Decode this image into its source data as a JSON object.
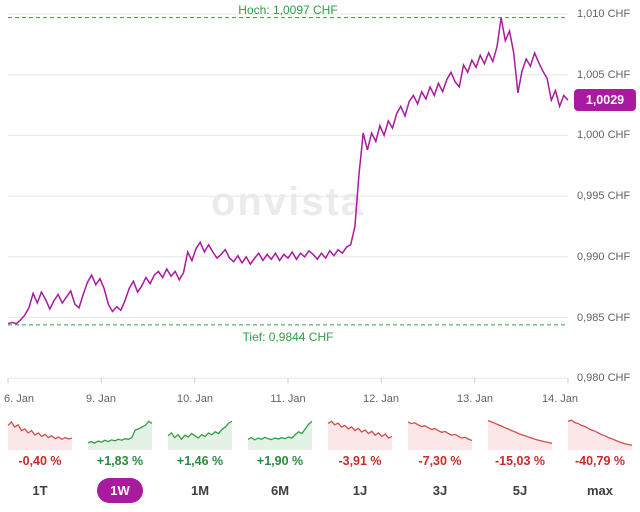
{
  "watermark": "onvista",
  "colors": {
    "line": "#a81a9e",
    "badge_bg": "#a81a9e",
    "high_low": "#2f9e44",
    "grid": "#e7e7e7",
    "axis_text": "#5f6368",
    "positive_line": "#2f9e44",
    "positive_fill": "#e3f2e4",
    "negative_line": "#d24d4d",
    "negative_fill": "#fbe7e7",
    "positive_text": "#2b8a3e",
    "negative_text": "#c92a2a"
  },
  "chart_data": {
    "type": "line",
    "currency": "CHF",
    "high_label": "Hoch: 1,0097 CHF",
    "low_label": "Tief: 0,9844 CHF",
    "high_value": 1.0097,
    "low_value": 0.9844,
    "last_price": 1.0029,
    "last_price_label": "1,0029",
    "ylim": [
      0.98,
      1.01
    ],
    "y_ticks": [
      "1,010 CHF",
      "1,005 CHF",
      "1,000 CHF",
      "0,995 CHF",
      "0,990 CHF",
      "0,985 CHF",
      "0,980 CHF"
    ],
    "y_tick_values": [
      1.01,
      1.005,
      1.0,
      0.995,
      0.99,
      0.985,
      0.98
    ],
    "x_labels": [
      "6. Jan",
      "9. Jan",
      "10. Jan",
      "11. Jan",
      "12. Jan",
      "13. Jan",
      "14. Jan"
    ],
    "series": [
      {
        "name": "price",
        "values": [
          0.9845,
          0.9846,
          0.9845,
          0.9848,
          0.9852,
          0.9858,
          0.987,
          0.9862,
          0.9871,
          0.9865,
          0.9857,
          0.9864,
          0.9869,
          0.9862,
          0.9867,
          0.9872,
          0.9861,
          0.9858,
          0.9869,
          0.9879,
          0.9885,
          0.9877,
          0.9882,
          0.9874,
          0.9861,
          0.9855,
          0.9859,
          0.9856,
          0.9864,
          0.9874,
          0.988,
          0.9871,
          0.9876,
          0.9883,
          0.9878,
          0.9885,
          0.9888,
          0.9883,
          0.989,
          0.9884,
          0.9888,
          0.9881,
          0.9887,
          0.9904,
          0.9897,
          0.9907,
          0.9912,
          0.9904,
          0.991,
          0.9904,
          0.9899,
          0.9902,
          0.9906,
          0.9899,
          0.9896,
          0.9901,
          0.9895,
          0.99,
          0.9894,
          0.9899,
          0.9903,
          0.9897,
          0.9902,
          0.9898,
          0.9903,
          0.9897,
          0.9902,
          0.9899,
          0.9904,
          0.9898,
          0.9903,
          0.99,
          0.9905,
          0.9902,
          0.9898,
          0.9903,
          0.9899,
          0.9905,
          0.9901,
          0.9906,
          0.9903,
          0.9908,
          0.991,
          0.9925,
          0.9968,
          1.0002,
          0.9988,
          1.0002,
          0.9995,
          1.0008,
          1.0,
          1.0012,
          1.0006,
          1.0018,
          1.0024,
          1.0016,
          1.0028,
          1.0033,
          1.0026,
          1.0036,
          1.003,
          1.004,
          1.0033,
          1.0043,
          1.0036,
          1.0046,
          1.0052,
          1.0044,
          1.004,
          1.0058,
          1.0052,
          1.0062,
          1.0056,
          1.0066,
          1.0059,
          1.0068,
          1.0061,
          1.0073,
          1.0097,
          1.0078,
          1.0086,
          1.0068,
          1.0035,
          1.0053,
          1.0063,
          1.0057,
          1.0068,
          1.006,
          1.0053,
          1.0047,
          1.0029,
          1.0037,
          1.0024,
          1.0033,
          1.0029
        ]
      }
    ]
  },
  "sparklines": {
    "items": [
      {
        "period": "1T",
        "label": "-0,40 %",
        "trend": "down",
        "values": [
          0.78,
          0.9,
          0.72,
          0.8,
          0.6,
          0.66,
          0.52,
          0.6,
          0.45,
          0.52,
          0.4,
          0.47,
          0.36,
          0.42,
          0.32,
          0.38,
          0.3,
          0.36,
          0.31,
          0.34
        ]
      },
      {
        "period": "1W",
        "label": "+1,83 %",
        "trend": "up",
        "values": [
          0.18,
          0.22,
          0.17,
          0.24,
          0.2,
          0.27,
          0.22,
          0.28,
          0.25,
          0.3,
          0.27,
          0.32,
          0.3,
          0.36,
          0.62,
          0.66,
          0.72,
          0.78,
          0.92,
          0.85
        ]
      },
      {
        "period": "1M",
        "label": "+1,46 %",
        "trend": "up",
        "values": [
          0.42,
          0.52,
          0.36,
          0.46,
          0.3,
          0.44,
          0.38,
          0.5,
          0.42,
          0.35,
          0.46,
          0.4,
          0.52,
          0.46,
          0.56,
          0.5,
          0.64,
          0.72,
          0.86,
          0.92
        ]
      },
      {
        "period": "6M",
        "label": "+1,90 %",
        "trend": "up",
        "values": [
          0.3,
          0.36,
          0.28,
          0.34,
          0.3,
          0.37,
          0.32,
          0.29,
          0.35,
          0.31,
          0.36,
          0.32,
          0.38,
          0.34,
          0.46,
          0.56,
          0.5,
          0.66,
          0.82,
          0.92
        ]
      },
      {
        "period": "1J",
        "label": "-3,91 %",
        "trend": "down",
        "values": [
          0.85,
          0.92,
          0.8,
          0.86,
          0.72,
          0.78,
          0.66,
          0.73,
          0.6,
          0.68,
          0.55,
          0.62,
          0.5,
          0.58,
          0.44,
          0.52,
          0.4,
          0.48,
          0.34,
          0.4
        ]
      },
      {
        "period": "3J",
        "label": "-7,30 %",
        "trend": "down",
        "values": [
          0.9,
          0.84,
          0.87,
          0.8,
          0.74,
          0.77,
          0.7,
          0.64,
          0.67,
          0.6,
          0.54,
          0.57,
          0.5,
          0.44,
          0.47,
          0.4,
          0.34,
          0.37,
          0.3,
          0.26
        ]
      },
      {
        "period": "5J",
        "label": "-15,03 %",
        "trend": "down",
        "values": [
          0.95,
          0.9,
          0.86,
          0.8,
          0.76,
          0.7,
          0.66,
          0.6,
          0.56,
          0.5,
          0.46,
          0.42,
          0.38,
          0.34,
          0.3,
          0.27,
          0.24,
          0.21,
          0.19,
          0.16
        ]
      },
      {
        "period": "max",
        "label": "-40,79 %",
        "trend": "down",
        "values": [
          0.92,
          0.96,
          0.88,
          0.84,
          0.78,
          0.74,
          0.68,
          0.62,
          0.58,
          0.52,
          0.46,
          0.42,
          0.36,
          0.32,
          0.27,
          0.22,
          0.18,
          0.14,
          0.12,
          0.09
        ]
      }
    ]
  },
  "range_buttons": {
    "items": [
      {
        "label": "1T",
        "selected": false
      },
      {
        "label": "1W",
        "selected": true
      },
      {
        "label": "1M",
        "selected": false
      },
      {
        "label": "6M",
        "selected": false
      },
      {
        "label": "1J",
        "selected": false
      },
      {
        "label": "3J",
        "selected": false
      },
      {
        "label": "5J",
        "selected": false
      },
      {
        "label": "max",
        "selected": false
      }
    ]
  }
}
